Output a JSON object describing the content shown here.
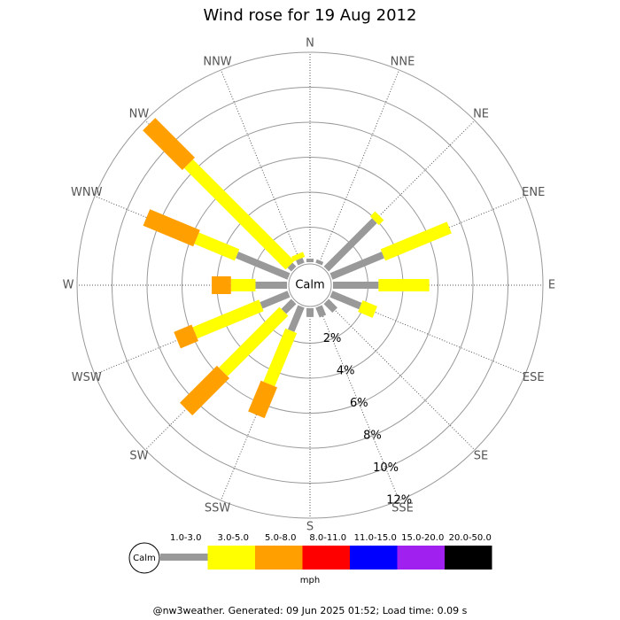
{
  "chart_data": {
    "type": "windrose",
    "title": "Wind rose for 19 Aug 2012",
    "directions": [
      "N",
      "NNE",
      "NE",
      "ENE",
      "E",
      "ESE",
      "SE",
      "SSE",
      "S",
      "SSW",
      "SW",
      "WSW",
      "W",
      "WNW",
      "NW",
      "NNW"
    ],
    "calm_label": "Calm",
    "rlim": [
      0,
      12
    ],
    "rticks": [
      {
        "value": 2,
        "label": "2%"
      },
      {
        "value": 4,
        "label": "4%"
      },
      {
        "value": 6,
        "label": "6%"
      },
      {
        "value": 8,
        "label": "8%"
      },
      {
        "value": 10,
        "label": "10%"
      },
      {
        "value": 12,
        "label": "12%"
      }
    ],
    "unit": "mph",
    "series": [
      {
        "name": "1.0-3.0",
        "color": "#999999",
        "values": [
          0.2,
          0.2,
          3.9,
          3.2,
          2.6,
          1.8,
          0.7,
          0.6,
          0.5,
          1.5,
          0.8,
          1.7,
          1.8,
          3.2,
          0.3,
          0.3
        ]
      },
      {
        "name": "3.0-5.0",
        "color": "#ffff00",
        "values": [
          0,
          0,
          0.4,
          4.1,
          2.9,
          0.9,
          0,
          0,
          0,
          3.3,
          4.9,
          4.1,
          1.4,
          2.5,
          8.2,
          0.3
        ]
      },
      {
        "name": "5.0-8.0",
        "color": "#ffa000",
        "values": [
          0,
          0,
          0,
          0,
          0,
          0,
          0,
          0,
          0,
          1.9,
          3.0,
          1.1,
          1.1,
          3.1,
          3.2,
          0
        ]
      },
      {
        "name": "8.0-11.0",
        "color": "#ff0000",
        "values": [
          0,
          0,
          0,
          0,
          0,
          0,
          0,
          0,
          0,
          0,
          0,
          0,
          0,
          0,
          0,
          0
        ]
      },
      {
        "name": "11.0-15.0",
        "color": "#0000ff",
        "values": [
          0,
          0,
          0,
          0,
          0,
          0,
          0,
          0,
          0,
          0,
          0,
          0,
          0,
          0,
          0,
          0
        ]
      },
      {
        "name": "15.0-20.0",
        "color": "#a020f0",
        "values": [
          0,
          0,
          0,
          0,
          0,
          0,
          0,
          0,
          0,
          0,
          0,
          0,
          0,
          0,
          0,
          0
        ]
      },
      {
        "name": "20.0-50.0",
        "color": "#000000",
        "values": [
          0,
          0,
          0,
          0,
          0,
          0,
          0,
          0,
          0,
          0,
          0,
          0,
          0,
          0,
          0,
          0
        ]
      }
    ]
  },
  "footer": "@nw3weather. Generated: 09 Jun 2025 01:52; Load time: 0.09 s"
}
